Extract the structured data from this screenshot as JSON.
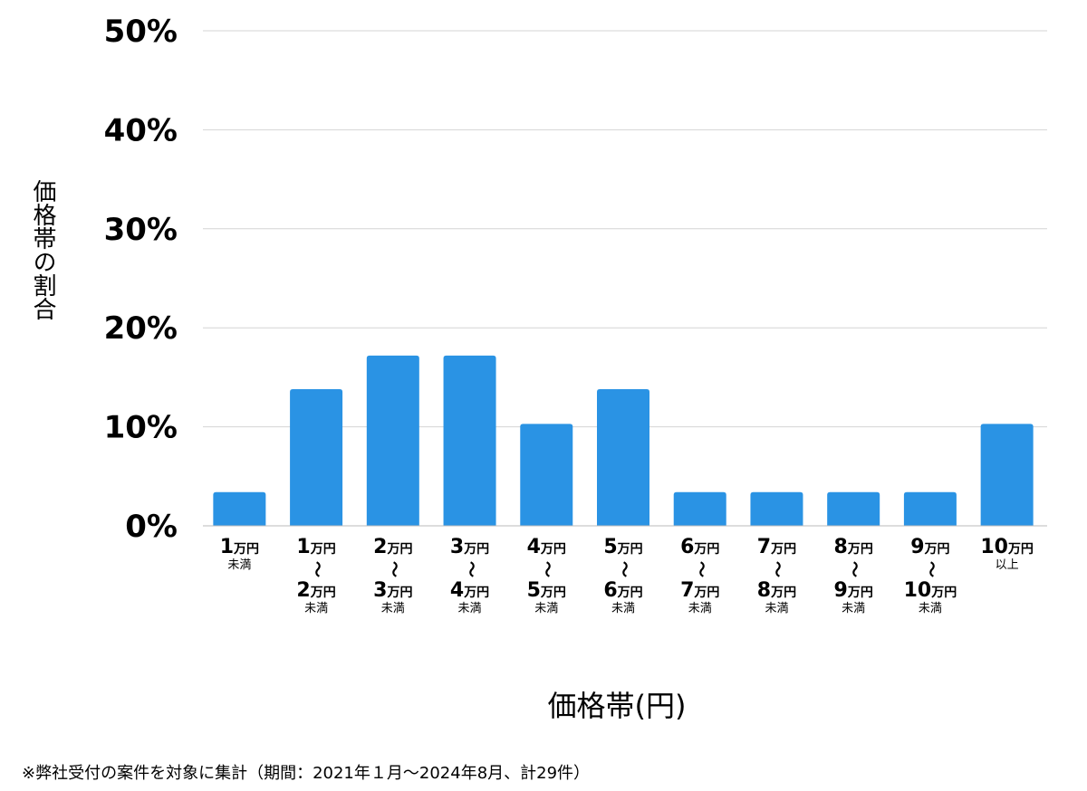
{
  "chart_data": {
    "type": "bar",
    "categories": [
      {
        "from_num": "1",
        "from_unit": "万円",
        "sep": "",
        "to_num": "",
        "to_unit": "",
        "note": "未満"
      },
      {
        "from_num": "1",
        "from_unit": "万円",
        "sep": "〜",
        "to_num": "2",
        "to_unit": "万円",
        "note": "未満"
      },
      {
        "from_num": "2",
        "from_unit": "万円",
        "sep": "〜",
        "to_num": "3",
        "to_unit": "万円",
        "note": "未満"
      },
      {
        "from_num": "3",
        "from_unit": "万円",
        "sep": "〜",
        "to_num": "4",
        "to_unit": "万円",
        "note": "未満"
      },
      {
        "from_num": "4",
        "from_unit": "万円",
        "sep": "〜",
        "to_num": "5",
        "to_unit": "万円",
        "note": "未満"
      },
      {
        "from_num": "5",
        "from_unit": "万円",
        "sep": "〜",
        "to_num": "6",
        "to_unit": "万円",
        "note": "未満"
      },
      {
        "from_num": "6",
        "from_unit": "万円",
        "sep": "〜",
        "to_num": "7",
        "to_unit": "万円",
        "note": "未満"
      },
      {
        "from_num": "7",
        "from_unit": "万円",
        "sep": "〜",
        "to_num": "8",
        "to_unit": "万円",
        "note": "未満"
      },
      {
        "from_num": "8",
        "from_unit": "万円",
        "sep": "〜",
        "to_num": "9",
        "to_unit": "万円",
        "note": "未満"
      },
      {
        "from_num": "9",
        "from_unit": "万円",
        "sep": "〜",
        "to_num": "10",
        "to_unit": "万円",
        "note": "未満"
      },
      {
        "from_num": "10",
        "from_unit": "万円",
        "sep": "",
        "to_num": "",
        "to_unit": "",
        "note": "以上"
      }
    ],
    "values": [
      3.4,
      13.8,
      17.2,
      17.2,
      10.3,
      13.8,
      3.4,
      3.4,
      3.4,
      3.4,
      10.3
    ],
    "ylim": [
      0,
      50
    ],
    "yticks": [
      "0%",
      "10%",
      "20%",
      "30%",
      "40%",
      "50%"
    ],
    "ytick_values": [
      0,
      10,
      20,
      30,
      40,
      50
    ],
    "ylabel": "価格帯の割合",
    "xlabel": "価格帯(円)",
    "grid": true,
    "bar_color": "#2a93e4",
    "grid_color": "#d4d4d4"
  },
  "footnote": "※弊社受付の案件を対象に集計（期間：2021年１月〜2024年8月、計29件）"
}
